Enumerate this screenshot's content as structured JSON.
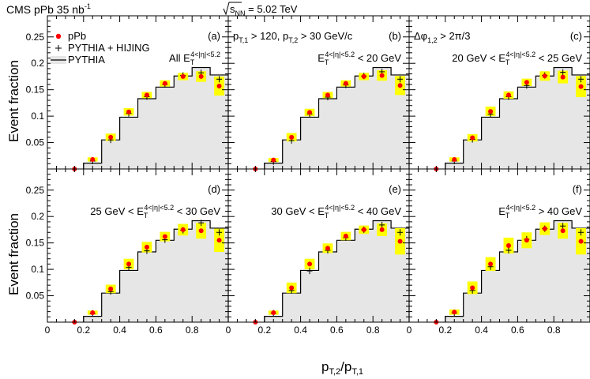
{
  "header": {
    "left_text": "CMS  pPb  35 nb",
    "left_sup": "-1",
    "right_sqrt": "s",
    "right_sub": "NN",
    "right_value": " = 5.02 TeV"
  },
  "axes": {
    "xlabel_main": "p",
    "xlabel_num_sub": "T,2",
    "xlabel_slash": "/p",
    "xlabel_den_sub": "T,1",
    "ylabel": "Event fraction"
  },
  "legend": {
    "pPb": "pPb",
    "pythia_hijing": "PYTHIA + HIJING",
    "pythia": "PYTHIA"
  },
  "kinematic_cuts": {
    "pt_line_p1": "p",
    "pt_line_s1": "T,1",
    "pt_line_t1": " > 120, p",
    "pt_line_s2": "T,2",
    "pt_line_t2": " > 30 GeV/c",
    "dphi_phi": "Δφ",
    "dphi_sub": "1,2",
    "dphi_rest": " > 2π/3"
  },
  "colors": {
    "ppb_marker": "#ff0000",
    "syst_band": "#ffff00",
    "pythia_fill": "#e6e6e6",
    "axis": "#000000"
  },
  "chart_data": {
    "type": "line",
    "title": "",
    "xlabel": "pT,2/pT,1",
    "ylabel": "Event fraction",
    "xlim": [
      0,
      1.0
    ],
    "ylim": [
      0,
      0.29
    ],
    "x_ticks": [
      "0",
      "0.2",
      "0.4",
      "0.6",
      "0.8"
    ],
    "y_ticks": [
      "0.05",
      "0.1",
      "0.15",
      "0.2",
      "0.25"
    ],
    "bin_edges": [
      0.2,
      0.3,
      0.4,
      0.5,
      0.6,
      0.7,
      0.8,
      0.9,
      1.0
    ],
    "bin_centers": [
      0.15,
      0.25,
      0.35,
      0.45,
      0.55,
      0.65,
      0.75,
      0.85,
      0.95
    ],
    "pythia": [
      0.011,
      0.055,
      0.098,
      0.133,
      0.155,
      0.176,
      0.192,
      0.178
    ],
    "panels": [
      {
        "label": "(a)",
        "cut_prefix": "All E",
        "cut_suffix": "",
        "ppb": [
          0.0,
          0.018,
          0.06,
          0.108,
          0.14,
          0.162,
          0.175,
          0.175,
          0.157
        ],
        "hij": [
          0.0,
          0.015,
          0.055,
          0.105,
          0.137,
          0.16,
          0.177,
          0.182,
          0.17
        ],
        "syst": [
          0.0,
          0.004,
          0.007,
          0.007,
          0.006,
          0.006,
          0.007,
          0.01,
          0.018
        ]
      },
      {
        "label": "(b)",
        "cut_prefix": "E",
        "cut_suffix": " < 20 GeV",
        "ppb": [
          0.0,
          0.017,
          0.06,
          0.107,
          0.14,
          0.162,
          0.175,
          0.177,
          0.158
        ],
        "hij": [
          0.0,
          0.014,
          0.054,
          0.104,
          0.136,
          0.159,
          0.176,
          0.184,
          0.17
        ],
        "syst": [
          0.0,
          0.004,
          0.008,
          0.007,
          0.006,
          0.006,
          0.007,
          0.01,
          0.018
        ]
      },
      {
        "label": "(c)",
        "cut_prefix": "20 GeV < E",
        "cut_suffix": " < 25 GeV",
        "ppb": [
          0.0,
          0.018,
          0.059,
          0.109,
          0.14,
          0.164,
          0.176,
          0.174,
          0.156
        ],
        "hij": [
          0.0,
          0.015,
          0.056,
          0.104,
          0.137,
          0.158,
          0.177,
          0.183,
          0.17
        ],
        "syst": [
          0.0,
          0.004,
          0.007,
          0.009,
          0.007,
          0.007,
          0.009,
          0.012,
          0.02
        ]
      },
      {
        "label": "(d)",
        "cut_prefix": "25 GeV < E",
        "cut_suffix": " < 30 GeV",
        "ppb": [
          0.0,
          0.018,
          0.063,
          0.11,
          0.142,
          0.162,
          0.175,
          0.173,
          0.155
        ],
        "hij": [
          0.0,
          0.016,
          0.058,
          0.104,
          0.135,
          0.156,
          0.174,
          0.188,
          0.17
        ],
        "syst": [
          0.0,
          0.004,
          0.008,
          0.01,
          0.01,
          0.009,
          0.011,
          0.015,
          0.022
        ]
      },
      {
        "label": "(e)",
        "cut_prefix": "30 GeV < E",
        "cut_suffix": " < 40 GeV",
        "ppb": [
          0.0,
          0.018,
          0.065,
          0.11,
          0.14,
          0.163,
          0.175,
          0.175,
          0.153
        ],
        "hij": [
          0.0,
          0.017,
          0.06,
          0.097,
          0.136,
          0.16,
          0.175,
          0.184,
          0.17
        ],
        "syst": [
          0.0,
          0.004,
          0.01,
          0.01,
          0.009,
          0.008,
          0.008,
          0.012,
          0.025
        ]
      },
      {
        "label": "(f)",
        "cut_prefix": "E",
        "cut_suffix": " > 40 GeV",
        "ppb": [
          0.0,
          0.019,
          0.065,
          0.11,
          0.145,
          0.155,
          0.177,
          0.173,
          0.153
        ],
        "hij": [
          0.0,
          0.017,
          0.06,
          0.105,
          0.136,
          0.157,
          0.177,
          0.182,
          0.17
        ],
        "syst": [
          0.0,
          0.005,
          0.012,
          0.013,
          0.015,
          0.015,
          0.012,
          0.015,
          0.025
        ]
      }
    ],
    "et_superscript": "4<|η|<5.2",
    "et_subscript": "T"
  }
}
